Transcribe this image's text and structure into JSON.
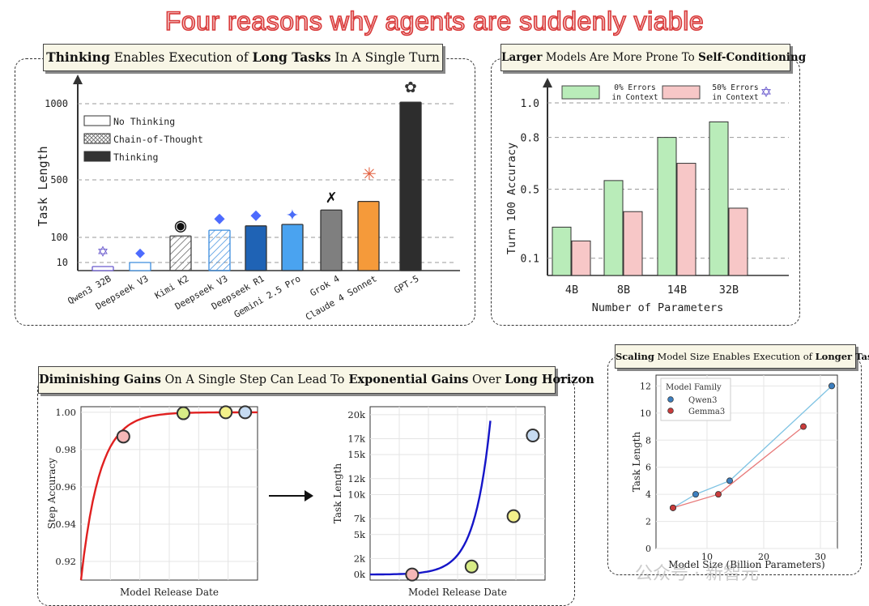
{
  "title": "Four reasons why agents are suddenly viable",
  "panel1": {
    "title_parts": [
      {
        "t": "Thinking",
        "b": true
      },
      {
        "t": " Enables Execution of ",
        "b": false
      },
      {
        "t": "Long Tasks",
        "b": true
      },
      {
        "t": " In A Single Turn",
        "b": false
      }
    ]
  },
  "panel2": {
    "title_parts": [
      {
        "t": "Larger",
        "b": true
      },
      {
        "t": " Models Are More Prone To ",
        "b": false
      },
      {
        "t": "Self-Conditioning",
        "b": true
      }
    ]
  },
  "panel3": {
    "title_parts": [
      {
        "t": "Diminishing Gains",
        "b": true
      },
      {
        "t": " On A Single Step ",
        "b": false
      },
      {
        "t": "Can Lead To",
        "b": false
      },
      {
        "t": " Exponential Gains",
        "b": true
      },
      {
        "t": " Over ",
        "b": false
      },
      {
        "t": "Long Horizon",
        "b": true
      }
    ]
  },
  "panel4": {
    "title_parts": [
      {
        "t": "Scaling",
        "b": true
      },
      {
        "t": " Model Size Enables Execution of ",
        "b": false
      },
      {
        "t": "Longer Tasks",
        "b": true
      }
    ]
  },
  "watermark": "公众号 · 新智元",
  "chart_data": [
    {
      "type": "bar",
      "title": "Thinking Enables Execution of Long Tasks In A Single Turn",
      "ylabel": "Task Length",
      "ylim": [
        0,
        1100
      ],
      "yticks": [
        10,
        100,
        500,
        1000
      ],
      "categories": [
        "Qwen3 32B",
        "Deepseek V3",
        "Kimi K2",
        "Deepseek V3",
        "Deepseek R1",
        "Gemini 2.5 Pro",
        "Grok 4",
        "Claude 4 Sonnet",
        "GPT-5"
      ],
      "values": [
        5,
        10,
        110,
        150,
        180,
        190,
        290,
        350,
        1010
      ],
      "styles": [
        "none",
        "none",
        "cot",
        "cot",
        "thinking",
        "thinking",
        "thinking",
        "thinking",
        "thinking"
      ],
      "colors": [
        "#6a5acd",
        "#3c8dde",
        "#444444",
        "#3c8dde",
        "#1f63b5",
        "#4aa3f0",
        "#7f7f7f",
        "#f59a3a",
        "#2d2d2d"
      ],
      "legend": [
        "No Thinking",
        "Chain-of-Thought",
        "Thinking"
      ]
    },
    {
      "type": "bar",
      "title": "Larger Models Are More Prone To Self-Conditioning",
      "xlabel": "Number of Parameters",
      "ylabel": "Turn 100 Accuracy",
      "ylim": [
        0,
        1.08
      ],
      "yticks": [
        0.1,
        0.5,
        0.8,
        1.0
      ],
      "categories": [
        "4B",
        "8B",
        "14B",
        "32B"
      ],
      "series": [
        {
          "name": "0% Errors in Context",
          "values": [
            0.28,
            0.55,
            0.8,
            0.89
          ],
          "color": "#b9ecb9"
        },
        {
          "name": "50% Errors in Context",
          "values": [
            0.2,
            0.37,
            0.65,
            0.39
          ],
          "color": "#f7c7c7"
        }
      ]
    },
    {
      "type": "line",
      "xlabel": "Model Release Date",
      "ylabel": "Step Accuracy",
      "ylim": [
        0.91,
        1.003
      ],
      "yticks": [
        0.92,
        0.94,
        0.96,
        0.98,
        1.0
      ],
      "curve": "saturating",
      "points": [
        {
          "x": 0.24,
          "y": 0.987,
          "color": "#f5b7b7"
        },
        {
          "x": 0.58,
          "y": 0.9995,
          "color": "#d8ec86"
        },
        {
          "x": 0.82,
          "y": 1.0,
          "color": "#f3f08a"
        },
        {
          "x": 0.93,
          "y": 1.0,
          "color": "#c6dbf2"
        }
      ],
      "line_color": "#e02020"
    },
    {
      "type": "line",
      "xlabel": "Model Release Date",
      "ylabel": "Task Length",
      "ylim": [
        -700,
        21000
      ],
      "yticks": [
        0,
        2000,
        5000,
        7000,
        10000,
        12000,
        15000,
        17000,
        20000
      ],
      "ytick_labels": [
        "0k",
        "2k",
        "5k",
        "7k",
        "10k",
        "12k",
        "15k",
        "17k",
        "20k"
      ],
      "curve": "exponential",
      "points": [
        {
          "x": 0.24,
          "y": 0,
          "color": "#f5b7b7"
        },
        {
          "x": 0.58,
          "y": 1000,
          "color": "#d8ec86"
        },
        {
          "x": 0.82,
          "y": 7300,
          "color": "#f3f08a"
        },
        {
          "x": 0.93,
          "y": 17400,
          "color": "#c6dbf2"
        }
      ],
      "line_color": "#1515c8"
    },
    {
      "type": "line",
      "xlabel": "Model Size (Billion Parameters)",
      "ylabel": "Task Length",
      "xlim": [
        1,
        33
      ],
      "ylim": [
        0,
        12.8
      ],
      "xticks": [
        10,
        20,
        30
      ],
      "yticks": [
        0,
        2,
        4,
        6,
        8,
        10,
        12
      ],
      "legend_title": "Model Family",
      "series": [
        {
          "name": "Qwen3",
          "x": [
            4,
            8,
            14,
            32
          ],
          "y": [
            3,
            4,
            5,
            12
          ],
          "color": "#3d7fbf",
          "line": "#7fc3e3"
        },
        {
          "name": "Gemma3",
          "x": [
            4,
            12,
            27
          ],
          "y": [
            3,
            4,
            9
          ],
          "color": "#c93b3b",
          "line": "#e87a7a"
        }
      ]
    }
  ]
}
